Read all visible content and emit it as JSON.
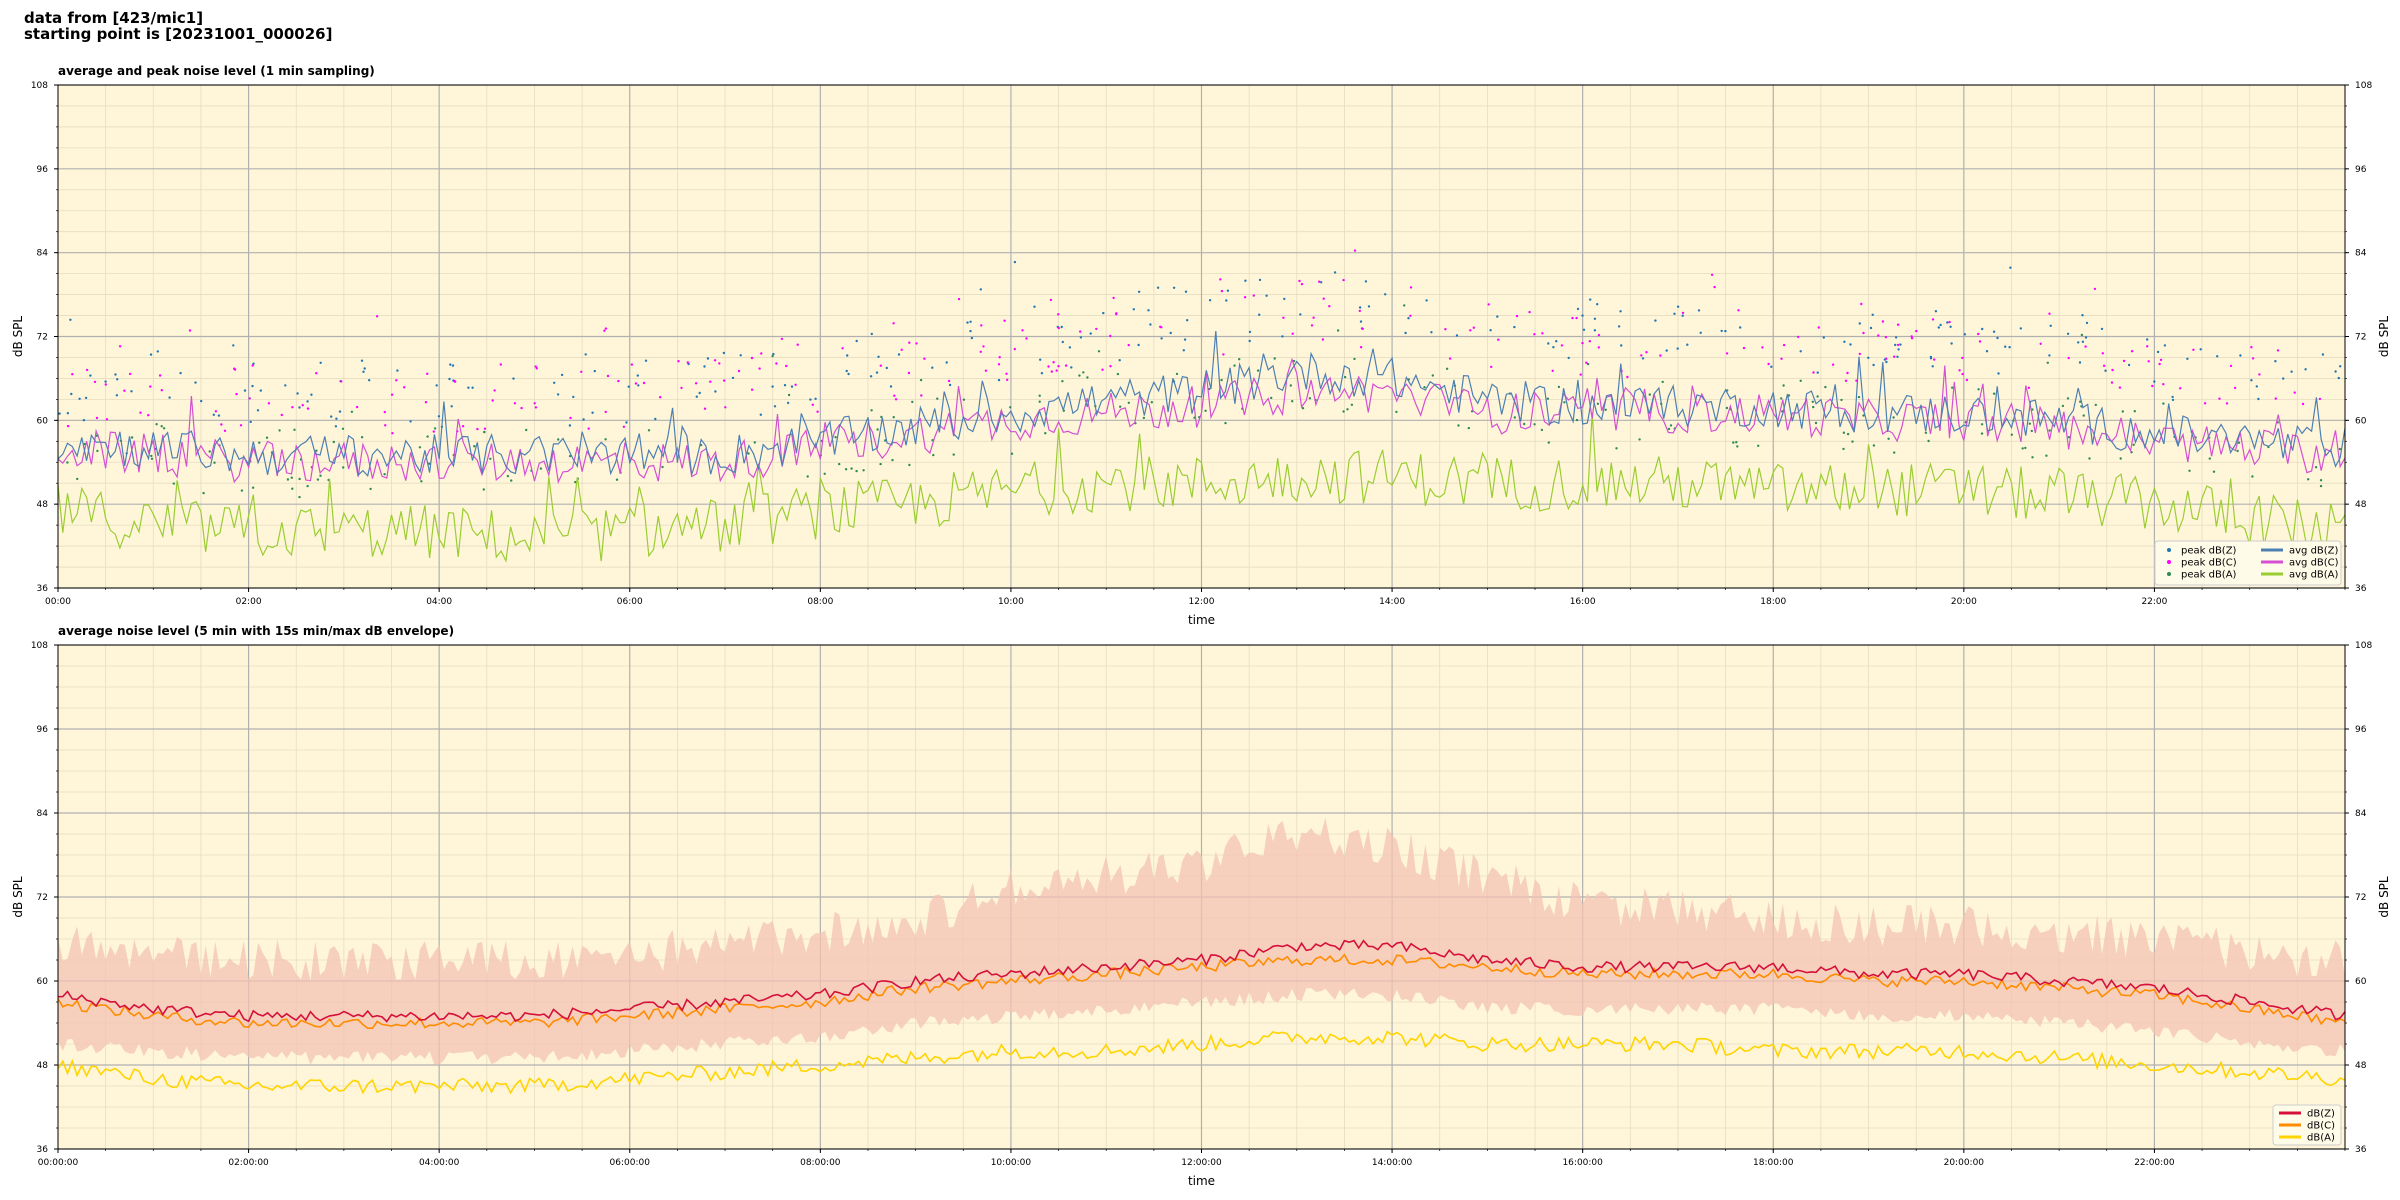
{
  "header": {
    "line1": "data from [423/mic1]",
    "line2": "starting point is [20231001_000026]"
  },
  "colors": {
    "plot_bg": "#fff6d9",
    "major_grid": "#b0b0b0",
    "minor_grid": "#e6dcc0",
    "avg_z": "#4d7fb3",
    "avg_c": "#d44fd4",
    "avg_a": "#9acd32",
    "peak_z": "#1f77b4",
    "peak_c": "#ff00ff",
    "peak_a": "#2e8b57",
    "line_z": "#d6103a",
    "line_c": "#ff8c00",
    "line_a": "#ffd400",
    "envelope": "#f3c3b3"
  },
  "chart_data": [
    {
      "type": "line",
      "title": "average and peak noise level (1 min sampling)",
      "xlabel": "time",
      "ylabel": "dB SPL",
      "ylim": [
        36,
        108
      ],
      "yticks": [
        36,
        48,
        60,
        72,
        84,
        96,
        108
      ],
      "xlim": [
        0,
        24
      ],
      "xtick_labels": [
        "00:00",
        "02:00",
        "04:00",
        "06:00",
        "08:00",
        "10:00",
        "12:00",
        "14:00",
        "16:00",
        "18:00",
        "20:00",
        "22:00"
      ],
      "grid": true,
      "legend_position": "bottom-right",
      "x_hours": [
        0,
        1,
        2,
        3,
        4,
        5,
        6,
        7,
        8,
        9,
        10,
        11,
        12,
        13,
        14,
        15,
        16,
        17,
        18,
        19,
        20,
        21,
        22,
        23,
        24
      ],
      "series": [
        {
          "name": "avg dB(Z)",
          "kind": "line",
          "values": [
            57,
            56,
            55,
            55,
            55,
            55,
            55,
            55,
            57,
            59,
            61,
            63,
            64,
            67,
            66,
            63,
            62,
            62,
            62,
            61,
            61,
            60,
            58,
            57,
            56
          ]
        },
        {
          "name": "avg dB(C)",
          "kind": "line",
          "values": [
            56,
            55,
            54,
            54,
            54,
            54,
            54,
            54,
            56,
            58,
            60,
            61,
            62,
            64,
            64,
            61,
            61,
            61,
            61,
            60,
            60,
            59,
            57,
            56,
            55
          ]
        },
        {
          "name": "avg dB(A)",
          "kind": "line",
          "values": [
            47,
            45,
            44,
            44,
            44,
            43,
            44,
            45,
            47,
            48,
            50,
            51,
            51,
            52,
            52,
            51,
            51,
            51,
            50,
            50,
            50,
            49,
            48,
            46,
            44
          ]
        },
        {
          "name": "peak dB(Z)",
          "kind": "scatter",
          "values": [
            64,
            64,
            63,
            63,
            63,
            63,
            63,
            64,
            66,
            67,
            70,
            72,
            74,
            76,
            76,
            73,
            72,
            72,
            71,
            70,
            70,
            69,
            67,
            66,
            64
          ]
        },
        {
          "name": "peak dB(C)",
          "kind": "scatter",
          "values": [
            63,
            63,
            62,
            62,
            62,
            62,
            62,
            63,
            65,
            66,
            69,
            71,
            72,
            75,
            74,
            71,
            70,
            70,
            70,
            69,
            69,
            68,
            66,
            65,
            63
          ]
        },
        {
          "name": "peak dB(A)",
          "kind": "scatter",
          "values": [
            55,
            54,
            53,
            53,
            53,
            53,
            53,
            54,
            56,
            57,
            59,
            61,
            62,
            64,
            63,
            61,
            60,
            60,
            60,
            59,
            59,
            58,
            57,
            56,
            54
          ]
        }
      ]
    },
    {
      "type": "line",
      "title": "average noise level (5 min with 15s min/max dB envelope)",
      "xlabel": "time",
      "ylabel": "dB SPL",
      "ylim": [
        36,
        108
      ],
      "yticks": [
        36,
        48,
        60,
        72,
        84,
        96,
        108
      ],
      "xlim": [
        0,
        24
      ],
      "xtick_labels": [
        "00:00:00",
        "02:00:00",
        "04:00:00",
        "06:00:00",
        "08:00:00",
        "10:00:00",
        "12:00:00",
        "14:00:00",
        "16:00:00",
        "18:00:00",
        "20:00:00",
        "22:00:00"
      ],
      "grid": true,
      "legend_position": "bottom-right",
      "x_hours": [
        0,
        1,
        2,
        3,
        4,
        5,
        6,
        7,
        8,
        9,
        10,
        11,
        12,
        13,
        14,
        15,
        16,
        17,
        18,
        19,
        20,
        21,
        22,
        23,
        24
      ],
      "series": [
        {
          "name": "dB(Z)",
          "kind": "line",
          "values": [
            58,
            56,
            55,
            55,
            55,
            55,
            56,
            57,
            58,
            60,
            61,
            62,
            63,
            65,
            65,
            63,
            62,
            62,
            62,
            61,
            61,
            60,
            59,
            57,
            55
          ]
        },
        {
          "name": "dB(C)",
          "kind": "line",
          "values": [
            57,
            55,
            54,
            54,
            54,
            54,
            55,
            56,
            57,
            59,
            60,
            61,
            62,
            63,
            63,
            62,
            61,
            61,
            61,
            60,
            60,
            59,
            58,
            56,
            54
          ]
        },
        {
          "name": "dB(A)",
          "kind": "line",
          "values": [
            48,
            46,
            45,
            45,
            45,
            45,
            46,
            47,
            48,
            49,
            50,
            50,
            51,
            52,
            52,
            51,
            51,
            51,
            50,
            50,
            50,
            49,
            48,
            47,
            46
          ]
        }
      ],
      "envelope": {
        "min": [
          52,
          51,
          50,
          50,
          50,
          50,
          51,
          52,
          53,
          55,
          56,
          57,
          58,
          59,
          59,
          57,
          57,
          57,
          57,
          56,
          56,
          55,
          54,
          52,
          51
        ],
        "max": [
          68,
          67,
          66,
          66,
          66,
          66,
          67,
          68,
          70,
          72,
          76,
          78,
          80,
          84,
          82,
          78,
          74,
          73,
          72,
          71,
          71,
          70,
          69,
          67,
          66
        ]
      }
    }
  ]
}
